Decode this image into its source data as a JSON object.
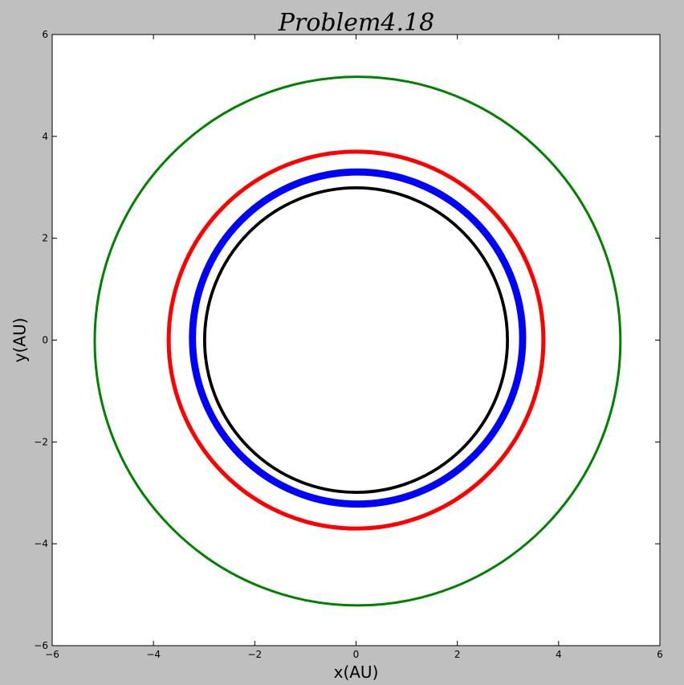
{
  "chart_data": {
    "type": "line",
    "title": "Problem4.18",
    "xlabel": "x(AU)",
    "ylabel": "y(AU)",
    "xlim": [
      -6,
      6
    ],
    "ylim": [
      -6,
      6
    ],
    "xticks": [
      -6,
      -4,
      -2,
      0,
      2,
      4,
      6
    ],
    "yticks": [
      -6,
      -4,
      -2,
      0,
      2,
      4,
      6
    ],
    "xtick_labels": [
      "−6",
      "−4",
      "−2",
      "0",
      "2",
      "4",
      "6"
    ],
    "ytick_labels": [
      "−6",
      "−4",
      "−2",
      "0",
      "2",
      "4",
      "6"
    ],
    "grid": false,
    "legend": "none",
    "series": [
      {
        "color": "#008000",
        "shape": "circle",
        "center": [
          0.03,
          -0.02
        ],
        "radius_inner": 5.17,
        "radius_outer": 5.21
      },
      {
        "color": "#ff0000",
        "shape": "circle",
        "center": [
          0.0,
          0.0
        ],
        "radius_inner": 3.66,
        "radius_outer": 3.74
      },
      {
        "color": "#0000ff",
        "shape": "circle",
        "center": [
          0.03,
          0.04
        ],
        "radius_inner": 3.19,
        "radius_outer": 3.33
      },
      {
        "color": "#000000",
        "shape": "circle",
        "center": [
          0.0,
          0.0
        ],
        "radius_inner": 2.96,
        "radius_outer": 3.02
      }
    ]
  }
}
